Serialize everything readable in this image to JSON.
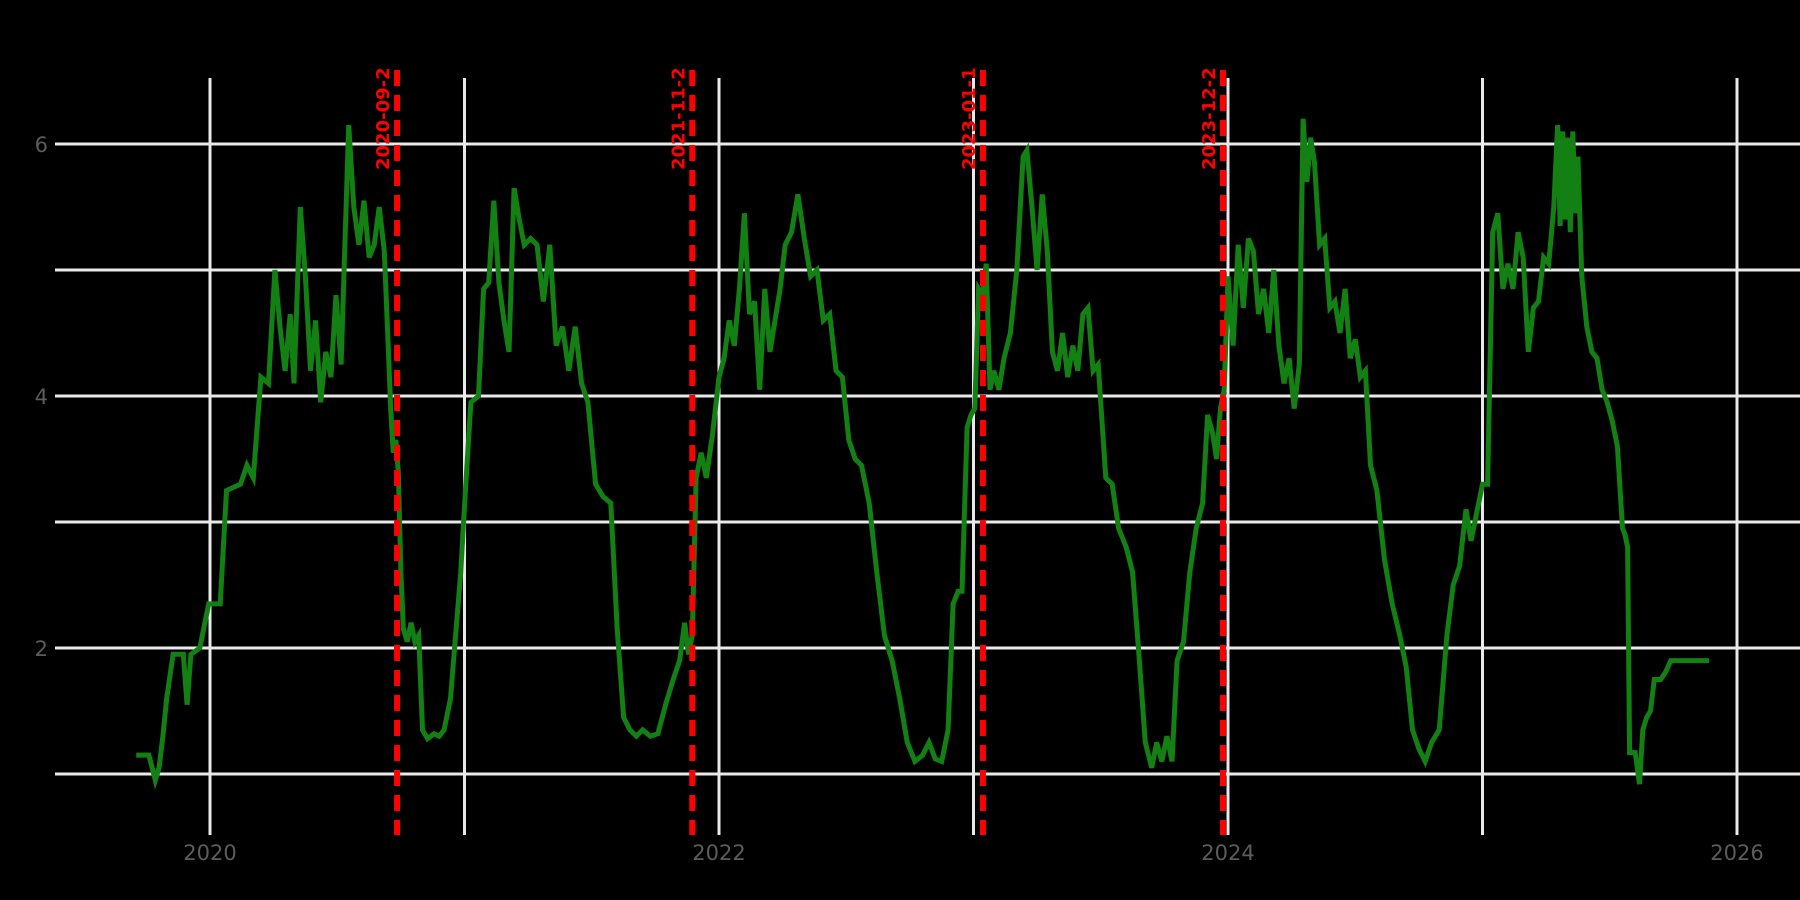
{
  "window": {
    "background": "#000000"
  },
  "chart_data": {
    "type": "line",
    "title": "",
    "xlabel": "",
    "ylabel": "",
    "x_unit": "decimal_year",
    "xlim": [
      2019.39,
      2026.25
    ],
    "ylim": [
      0.7,
      6.6
    ],
    "grid": true,
    "legend": "none",
    "x_gridlines": [
      2020,
      2021,
      2022,
      2023,
      2024,
      2025,
      2026
    ],
    "y_gridlines": [
      1,
      2,
      3,
      4,
      5,
      6
    ],
    "x_tick_labels": [
      {
        "label": "2020",
        "x": 2020
      },
      {
        "label": "2022",
        "x": 2022
      },
      {
        "label": "2024",
        "x": 2024
      },
      {
        "label": "2026",
        "x": 2026
      }
    ],
    "y_tick_labels": [
      {
        "label": "2",
        "v": 2
      },
      {
        "label": "4",
        "v": 4
      },
      {
        "label": "6",
        "v": 6
      }
    ],
    "colors": {
      "background": "#000000",
      "gridline": "#e9e9e9",
      "tick_label": "#5c5c5c",
      "series": "#128012",
      "event": "#ff0000"
    },
    "events": [
      {
        "label": "2020-09-2",
        "x": 2020.735
      },
      {
        "label": "2021-11-2",
        "x": 2021.895
      },
      {
        "label": "2023-01-1",
        "x": 2023.037
      },
      {
        "label": "2023-12-2",
        "x": 2023.98
      }
    ],
    "series": [
      {
        "name": "value",
        "color": "#128012",
        "points": [
          [
            2019.71,
            1.15
          ],
          [
            2019.76,
            1.15
          ],
          [
            2019.785,
            0.95
          ],
          [
            2019.8,
            1.05
          ],
          [
            2019.815,
            1.3
          ],
          [
            2019.83,
            1.6
          ],
          [
            2019.855,
            1.95
          ],
          [
            2019.895,
            1.95
          ],
          [
            2019.91,
            1.55
          ],
          [
            2019.925,
            1.95
          ],
          [
            2019.96,
            2.0
          ],
          [
            2019.995,
            2.35
          ],
          [
            2020.04,
            2.35
          ],
          [
            2020.065,
            3.25
          ],
          [
            2020.12,
            3.3
          ],
          [
            2020.145,
            3.45
          ],
          [
            2020.17,
            3.35
          ],
          [
            2020.2,
            4.15
          ],
          [
            2020.23,
            4.1
          ],
          [
            2020.255,
            5.0
          ],
          [
            2020.275,
            4.55
          ],
          [
            2020.295,
            4.2
          ],
          [
            2020.315,
            4.65
          ],
          [
            2020.33,
            4.1
          ],
          [
            2020.355,
            5.5
          ],
          [
            2020.375,
            4.95
          ],
          [
            2020.395,
            4.2
          ],
          [
            2020.415,
            4.6
          ],
          [
            2020.435,
            3.95
          ],
          [
            2020.455,
            4.35
          ],
          [
            2020.475,
            4.15
          ],
          [
            2020.495,
            4.8
          ],
          [
            2020.515,
            4.25
          ],
          [
            2020.545,
            6.15
          ],
          [
            2020.565,
            5.5
          ],
          [
            2020.585,
            5.2
          ],
          [
            2020.605,
            5.55
          ],
          [
            2020.625,
            5.1
          ],
          [
            2020.645,
            5.2
          ],
          [
            2020.665,
            5.5
          ],
          [
            2020.685,
            5.15
          ],
          [
            2020.7,
            4.4
          ],
          [
            2020.71,
            3.9
          ],
          [
            2020.72,
            3.55
          ],
          [
            2020.73,
            3.65
          ],
          [
            2020.74,
            3.4
          ],
          [
            2020.75,
            2.6
          ],
          [
            2020.76,
            2.15
          ],
          [
            2020.775,
            2.05
          ],
          [
            2020.79,
            2.2
          ],
          [
            2020.805,
            2.05
          ],
          [
            2020.82,
            2.1
          ],
          [
            2020.835,
            1.35
          ],
          [
            2020.855,
            1.28
          ],
          [
            2020.88,
            1.32
          ],
          [
            2020.9,
            1.3
          ],
          [
            2020.92,
            1.35
          ],
          [
            2020.945,
            1.6
          ],
          [
            2020.965,
            2.1
          ],
          [
            2020.985,
            2.6
          ],
          [
            2021.005,
            3.3
          ],
          [
            2021.025,
            3.95
          ],
          [
            2021.055,
            4.0
          ],
          [
            2021.075,
            4.85
          ],
          [
            2021.095,
            4.9
          ],
          [
            2021.115,
            5.55
          ],
          [
            2021.135,
            4.9
          ],
          [
            2021.155,
            4.6
          ],
          [
            2021.175,
            4.35
          ],
          [
            2021.195,
            5.65
          ],
          [
            2021.215,
            5.4
          ],
          [
            2021.235,
            5.2
          ],
          [
            2021.26,
            5.25
          ],
          [
            2021.285,
            5.2
          ],
          [
            2021.31,
            4.75
          ],
          [
            2021.335,
            5.2
          ],
          [
            2021.36,
            4.4
          ],
          [
            2021.385,
            4.55
          ],
          [
            2021.41,
            4.2
          ],
          [
            2021.435,
            4.55
          ],
          [
            2021.46,
            4.1
          ],
          [
            2021.485,
            3.95
          ],
          [
            2021.515,
            3.3
          ],
          [
            2021.545,
            3.2
          ],
          [
            2021.575,
            3.15
          ],
          [
            2021.6,
            2.15
          ],
          [
            2021.625,
            1.45
          ],
          [
            2021.65,
            1.35
          ],
          [
            2021.675,
            1.3
          ],
          [
            2021.7,
            1.35
          ],
          [
            2021.73,
            1.3
          ],
          [
            2021.76,
            1.32
          ],
          [
            2021.79,
            1.55
          ],
          [
            2021.82,
            1.75
          ],
          [
            2021.845,
            1.9
          ],
          [
            2021.865,
            2.2
          ],
          [
            2021.88,
            1.95
          ],
          [
            2021.895,
            2.1
          ],
          [
            2021.91,
            3.35
          ],
          [
            2021.93,
            3.55
          ],
          [
            2021.95,
            3.35
          ],
          [
            2021.975,
            3.7
          ],
          [
            2022.0,
            4.15
          ],
          [
            2022.02,
            4.3
          ],
          [
            2022.04,
            4.6
          ],
          [
            2022.06,
            4.4
          ],
          [
            2022.08,
            4.85
          ],
          [
            2022.1,
            5.45
          ],
          [
            2022.12,
            4.65
          ],
          [
            2022.14,
            4.75
          ],
          [
            2022.16,
            4.05
          ],
          [
            2022.18,
            4.85
          ],
          [
            2022.2,
            4.35
          ],
          [
            2022.22,
            4.6
          ],
          [
            2022.24,
            4.85
          ],
          [
            2022.26,
            5.2
          ],
          [
            2022.285,
            5.3
          ],
          [
            2022.31,
            5.6
          ],
          [
            2022.335,
            5.25
          ],
          [
            2022.36,
            4.95
          ],
          [
            2022.385,
            5.0
          ],
          [
            2022.41,
            4.6
          ],
          [
            2022.435,
            4.65
          ],
          [
            2022.46,
            4.2
          ],
          [
            2022.485,
            4.15
          ],
          [
            2022.51,
            3.65
          ],
          [
            2022.535,
            3.5
          ],
          [
            2022.56,
            3.45
          ],
          [
            2022.59,
            3.15
          ],
          [
            2022.62,
            2.6
          ],
          [
            2022.65,
            2.1
          ],
          [
            2022.68,
            1.9
          ],
          [
            2022.71,
            1.6
          ],
          [
            2022.74,
            1.25
          ],
          [
            2022.77,
            1.1
          ],
          [
            2022.8,
            1.15
          ],
          [
            2022.825,
            1.25
          ],
          [
            2022.85,
            1.12
          ],
          [
            2022.875,
            1.1
          ],
          [
            2022.9,
            1.35
          ],
          [
            2022.92,
            2.35
          ],
          [
            2022.94,
            2.45
          ],
          [
            2022.955,
            2.45
          ],
          [
            2022.975,
            3.75
          ],
          [
            2022.99,
            3.85
          ],
          [
            2023.005,
            3.9
          ],
          [
            2023.02,
            4.85
          ],
          [
            2023.035,
            4.8
          ],
          [
            2023.05,
            5.05
          ],
          [
            2023.065,
            4.05
          ],
          [
            2023.08,
            4.2
          ],
          [
            2023.1,
            4.05
          ],
          [
            2023.12,
            4.3
          ],
          [
            2023.145,
            4.5
          ],
          [
            2023.17,
            5.0
          ],
          [
            2023.195,
            5.9
          ],
          [
            2023.21,
            5.95
          ],
          [
            2023.23,
            5.5
          ],
          [
            2023.25,
            5.0
          ],
          [
            2023.27,
            5.6
          ],
          [
            2023.29,
            5.15
          ],
          [
            2023.31,
            4.35
          ],
          [
            2023.33,
            4.2
          ],
          [
            2023.35,
            4.5
          ],
          [
            2023.37,
            4.15
          ],
          [
            2023.39,
            4.4
          ],
          [
            2023.41,
            4.2
          ],
          [
            2023.43,
            4.65
          ],
          [
            2023.45,
            4.7
          ],
          [
            2023.47,
            4.2
          ],
          [
            2023.49,
            4.25
          ],
          [
            2023.52,
            3.35
          ],
          [
            2023.545,
            3.3
          ],
          [
            2023.57,
            2.95
          ],
          [
            2023.6,
            2.8
          ],
          [
            2023.625,
            2.6
          ],
          [
            2023.65,
            1.95
          ],
          [
            2023.675,
            1.25
          ],
          [
            2023.7,
            1.05
          ],
          [
            2023.72,
            1.25
          ],
          [
            2023.74,
            1.1
          ],
          [
            2023.76,
            1.3
          ],
          [
            2023.78,
            1.1
          ],
          [
            2023.8,
            1.9
          ],
          [
            2023.825,
            2.05
          ],
          [
            2023.85,
            2.6
          ],
          [
            2023.875,
            2.95
          ],
          [
            2023.9,
            3.15
          ],
          [
            2023.92,
            3.85
          ],
          [
            2023.94,
            3.7
          ],
          [
            2023.955,
            3.5
          ],
          [
            2023.97,
            3.9
          ],
          [
            2023.985,
            4.05
          ],
          [
            2024.0,
            4.95
          ],
          [
            2024.02,
            4.4
          ],
          [
            2024.04,
            5.2
          ],
          [
            2024.06,
            4.7
          ],
          [
            2024.08,
            5.25
          ],
          [
            2024.1,
            5.15
          ],
          [
            2024.12,
            4.65
          ],
          [
            2024.14,
            4.85
          ],
          [
            2024.16,
            4.5
          ],
          [
            2024.18,
            5.0
          ],
          [
            2024.2,
            4.4
          ],
          [
            2024.22,
            4.1
          ],
          [
            2024.24,
            4.3
          ],
          [
            2024.26,
            3.9
          ],
          [
            2024.28,
            4.25
          ],
          [
            2024.295,
            6.2
          ],
          [
            2024.31,
            5.7
          ],
          [
            2024.325,
            6.05
          ],
          [
            2024.34,
            5.85
          ],
          [
            2024.36,
            5.2
          ],
          [
            2024.38,
            5.25
          ],
          [
            2024.4,
            4.7
          ],
          [
            2024.42,
            4.75
          ],
          [
            2024.44,
            4.5
          ],
          [
            2024.46,
            4.85
          ],
          [
            2024.48,
            4.3
          ],
          [
            2024.5,
            4.45
          ],
          [
            2024.52,
            4.15
          ],
          [
            2024.54,
            4.2
          ],
          [
            2024.56,
            3.45
          ],
          [
            2024.585,
            3.25
          ],
          [
            2024.615,
            2.7
          ],
          [
            2024.645,
            2.35
          ],
          [
            2024.675,
            2.1
          ],
          [
            2024.7,
            1.85
          ],
          [
            2024.725,
            1.35
          ],
          [
            2024.75,
            1.2
          ],
          [
            2024.775,
            1.1
          ],
          [
            2024.8,
            1.25
          ],
          [
            2024.83,
            1.35
          ],
          [
            2024.86,
            2.1
          ],
          [
            2024.885,
            2.5
          ],
          [
            2024.91,
            2.65
          ],
          [
            2024.935,
            3.1
          ],
          [
            2024.955,
            2.85
          ],
          [
            2024.975,
            3.05
          ],
          [
            2025.0,
            3.3
          ],
          [
            2025.02,
            3.3
          ],
          [
            2025.04,
            5.3
          ],
          [
            2025.06,
            5.45
          ],
          [
            2025.08,
            4.85
          ],
          [
            2025.1,
            5.05
          ],
          [
            2025.12,
            4.85
          ],
          [
            2025.14,
            5.3
          ],
          [
            2025.16,
            5.1
          ],
          [
            2025.18,
            4.35
          ],
          [
            2025.2,
            4.7
          ],
          [
            2025.22,
            4.75
          ],
          [
            2025.24,
            5.1
          ],
          [
            2025.26,
            5.05
          ],
          [
            2025.28,
            5.5
          ],
          [
            2025.295,
            6.15
          ],
          [
            2025.305,
            5.35
          ],
          [
            2025.315,
            6.1
          ],
          [
            2025.325,
            5.4
          ],
          [
            2025.335,
            6.05
          ],
          [
            2025.345,
            5.3
          ],
          [
            2025.355,
            6.1
          ],
          [
            2025.365,
            5.45
          ],
          [
            2025.375,
            5.9
          ],
          [
            2025.39,
            4.95
          ],
          [
            2025.41,
            4.55
          ],
          [
            2025.43,
            4.35
          ],
          [
            2025.45,
            4.3
          ],
          [
            2025.47,
            4.05
          ],
          [
            2025.49,
            3.95
          ],
          [
            2025.51,
            3.8
          ],
          [
            2025.53,
            3.6
          ],
          [
            2025.55,
            2.95
          ],
          [
            2025.56,
            2.9
          ],
          [
            2025.57,
            2.8
          ],
          [
            2025.578,
            1.17
          ],
          [
            2025.6,
            1.17
          ],
          [
            2025.617,
            0.92
          ],
          [
            2025.63,
            1.35
          ],
          [
            2025.645,
            1.45
          ],
          [
            2025.66,
            1.5
          ],
          [
            2025.675,
            1.75
          ],
          [
            2025.7,
            1.75
          ],
          [
            2025.72,
            1.81
          ],
          [
            2025.74,
            1.9
          ],
          [
            2025.89,
            1.9
          ]
        ]
      }
    ]
  }
}
